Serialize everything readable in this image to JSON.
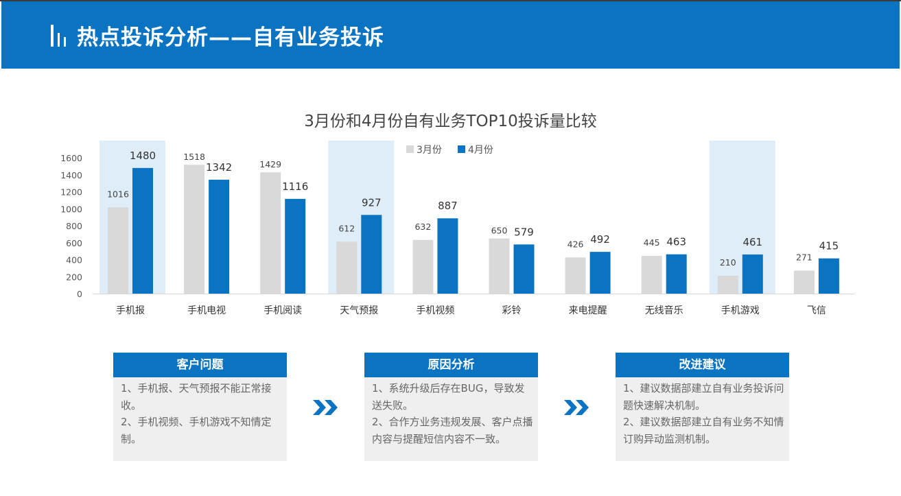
{
  "header": {
    "title": "热点投诉分析——自有业务投诉",
    "icon": "bar-lines-icon",
    "bg_color": "#0a74c3"
  },
  "chart_data": {
    "type": "bar",
    "title": "3月份和4月份自有业务TOP10投诉量比较",
    "categories": [
      "手机报",
      "手机电视",
      "手机阅读",
      "天气预报",
      "手机视频",
      "彩铃",
      "来电提醒",
      "无线音乐",
      "手机游戏",
      "飞信"
    ],
    "series": [
      {
        "name": "3月份",
        "color": "#d9d9d9",
        "values": [
          1016,
          1518,
          1429,
          612,
          632,
          650,
          426,
          445,
          210,
          271
        ]
      },
      {
        "name": "4月份",
        "color": "#0a74c3",
        "values": [
          1480,
          1342,
          1116,
          927,
          887,
          579,
          492,
          463,
          461,
          415
        ]
      }
    ],
    "yticks": [
      "0",
      "200",
      "400",
      "600",
      "800",
      "1000",
      "1200",
      "1400",
      "1600"
    ],
    "ylim": [
      0,
      1600
    ],
    "highlighted_categories": [
      "手机报",
      "天气预报",
      "手机游戏"
    ],
    "highlight_color": "#deedf8",
    "legend_position": "top",
    "grid": false
  },
  "panels": [
    {
      "title": "客户问题",
      "lines": [
        "1、手机报、天气预报不能正常接收。",
        "2、手机视频、手机游戏不知情定制。"
      ]
    },
    {
      "title": "原因分析",
      "lines": [
        "1、系统升级后存在BUG，导致发送失败。",
        "2、合作方业务违规发展、客户点播内容与提醒短信内容不一致。"
      ]
    },
    {
      "title": "改进建议",
      "lines": [
        "1、建议数据部建立自有业务投诉问题快速解决机制。",
        "2、建议数据部建立自有业务不知情订购异动监测机制。"
      ]
    }
  ],
  "arrows": {
    "icon": "double-chevron-right-icon",
    "color": "#0a74c3"
  }
}
